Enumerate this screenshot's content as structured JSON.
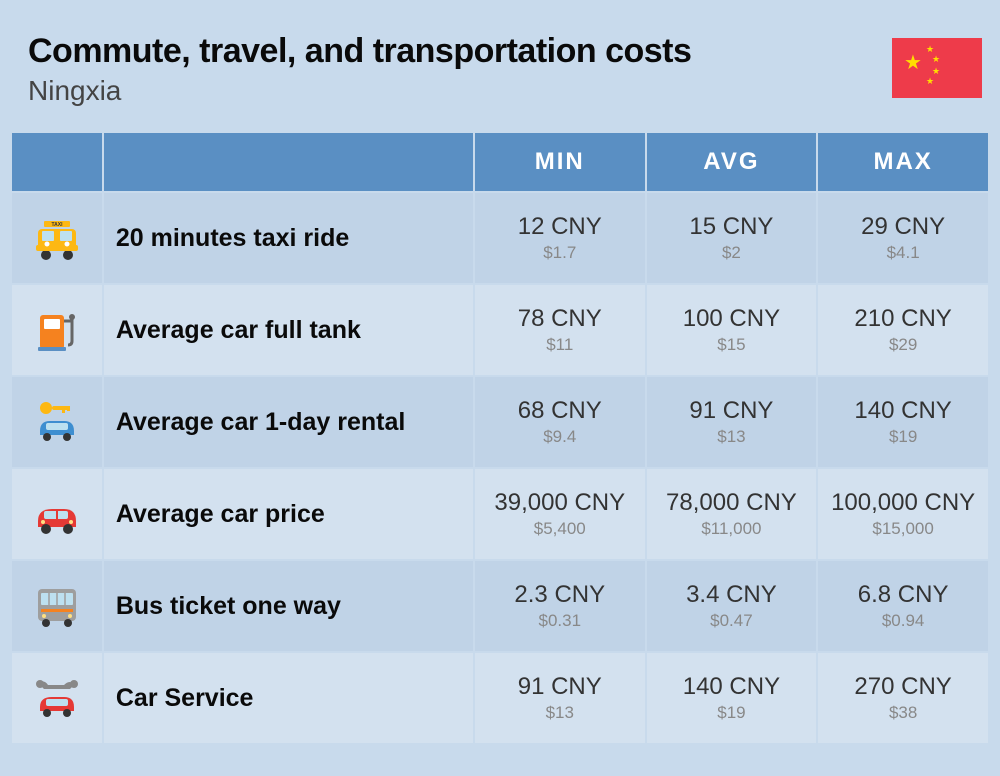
{
  "header": {
    "title": "Commute, travel, and transportation costs",
    "subtitle": "Ningxia"
  },
  "colors": {
    "page_bg": "#c8daec",
    "header_bg": "#5a8fc3",
    "header_text": "#ffffff",
    "row_odd_bg": "#c0d3e7",
    "row_even_bg": "#d3e1ef",
    "primary_text": "#333333",
    "secondary_text": "#888888",
    "label_text": "#0a0a0a",
    "flag_bg": "#ee3b4a",
    "flag_star": "#ffde00"
  },
  "columns": {
    "min": "MIN",
    "avg": "AVG",
    "max": "MAX"
  },
  "rows": [
    {
      "icon": "taxi",
      "label": "20 minutes taxi ride",
      "min": {
        "primary": "12 CNY",
        "secondary": "$1.7"
      },
      "avg": {
        "primary": "15 CNY",
        "secondary": "$2"
      },
      "max": {
        "primary": "29 CNY",
        "secondary": "$4.1"
      }
    },
    {
      "icon": "fuel",
      "label": "Average car full tank",
      "min": {
        "primary": "78 CNY",
        "secondary": "$11"
      },
      "avg": {
        "primary": "100 CNY",
        "secondary": "$15"
      },
      "max": {
        "primary": "210 CNY",
        "secondary": "$29"
      }
    },
    {
      "icon": "rental",
      "label": "Average car 1-day rental",
      "min": {
        "primary": "68 CNY",
        "secondary": "$9.4"
      },
      "avg": {
        "primary": "91 CNY",
        "secondary": "$13"
      },
      "max": {
        "primary": "140 CNY",
        "secondary": "$19"
      }
    },
    {
      "icon": "car",
      "label": "Average car price",
      "min": {
        "primary": "39,000 CNY",
        "secondary": "$5,400"
      },
      "avg": {
        "primary": "78,000 CNY",
        "secondary": "$11,000"
      },
      "max": {
        "primary": "100,000 CNY",
        "secondary": "$15,000"
      }
    },
    {
      "icon": "bus",
      "label": "Bus ticket one way",
      "min": {
        "primary": "2.3 CNY",
        "secondary": "$0.31"
      },
      "avg": {
        "primary": "3.4 CNY",
        "secondary": "$0.47"
      },
      "max": {
        "primary": "6.8 CNY",
        "secondary": "$0.94"
      }
    },
    {
      "icon": "service",
      "label": "Car Service",
      "min": {
        "primary": "91 CNY",
        "secondary": "$13"
      },
      "avg": {
        "primary": "140 CNY",
        "secondary": "$19"
      },
      "max": {
        "primary": "270 CNY",
        "secondary": "$38"
      }
    }
  ]
}
